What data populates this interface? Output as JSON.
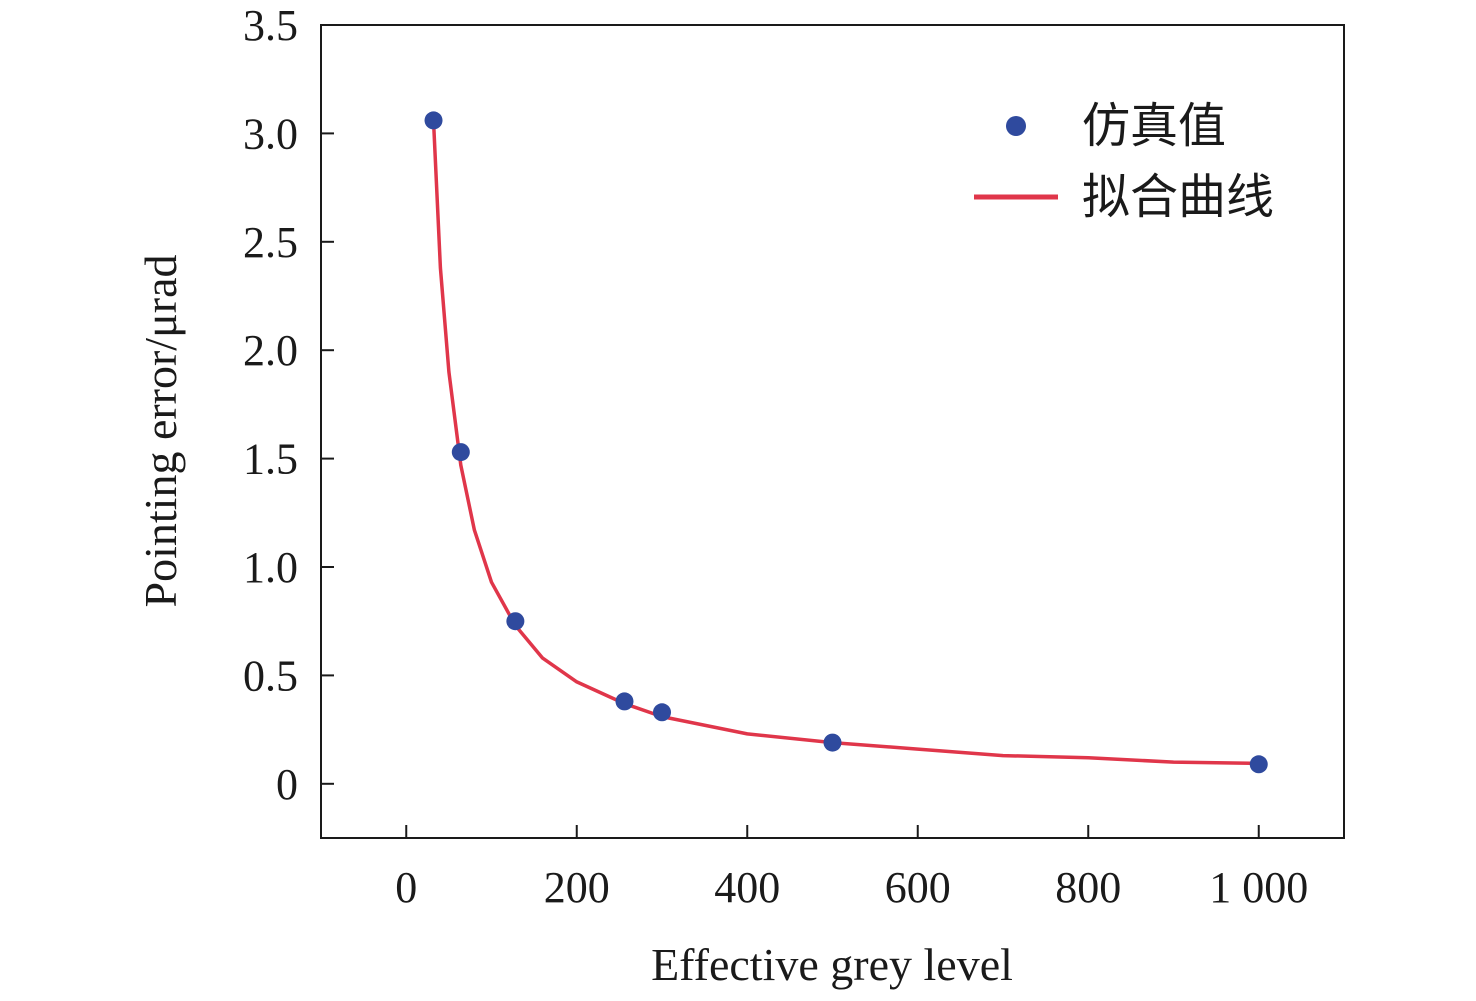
{
  "chart_data": {
    "type": "scatter",
    "xlabel": "Effective grey level",
    "ylabel": "Pointing error/μrad",
    "xlim": [
      -100,
      1100
    ],
    "ylim": [
      -0.25,
      3.5
    ],
    "xticks": [
      0,
      200,
      400,
      600,
      800,
      1000
    ],
    "xtick_labels": [
      "0",
      "200",
      "400",
      "600",
      "800",
      "1 000"
    ],
    "yticks": [
      0,
      0.5,
      1.0,
      1.5,
      2.0,
      2.5,
      3.0,
      3.5
    ],
    "ytick_labels": [
      "0",
      "0.5",
      "1.0",
      "1.5",
      "2.0",
      "2.5",
      "3.0",
      "3.5"
    ],
    "grid": false,
    "legend_position": "top-right",
    "series": [
      {
        "name": "仿真值",
        "kind": "scatter",
        "color": "#2f4a9e",
        "x": [
          32,
          64,
          128,
          256,
          300,
          500,
          1000
        ],
        "y": [
          3.06,
          1.53,
          0.75,
          0.38,
          0.33,
          0.19,
          0.09
        ]
      },
      {
        "name": "拟合曲线",
        "kind": "line",
        "color": "#e0364a",
        "x": [
          32,
          40,
          50,
          64,
          80,
          100,
          128,
          160,
          200,
          256,
          300,
          400,
          500,
          600,
          700,
          800,
          900,
          1000
        ],
        "y": [
          3.06,
          2.38,
          1.9,
          1.47,
          1.17,
          0.93,
          0.73,
          0.58,
          0.47,
          0.37,
          0.31,
          0.23,
          0.19,
          0.16,
          0.13,
          0.12,
          0.1,
          0.094
        ]
      }
    ]
  }
}
